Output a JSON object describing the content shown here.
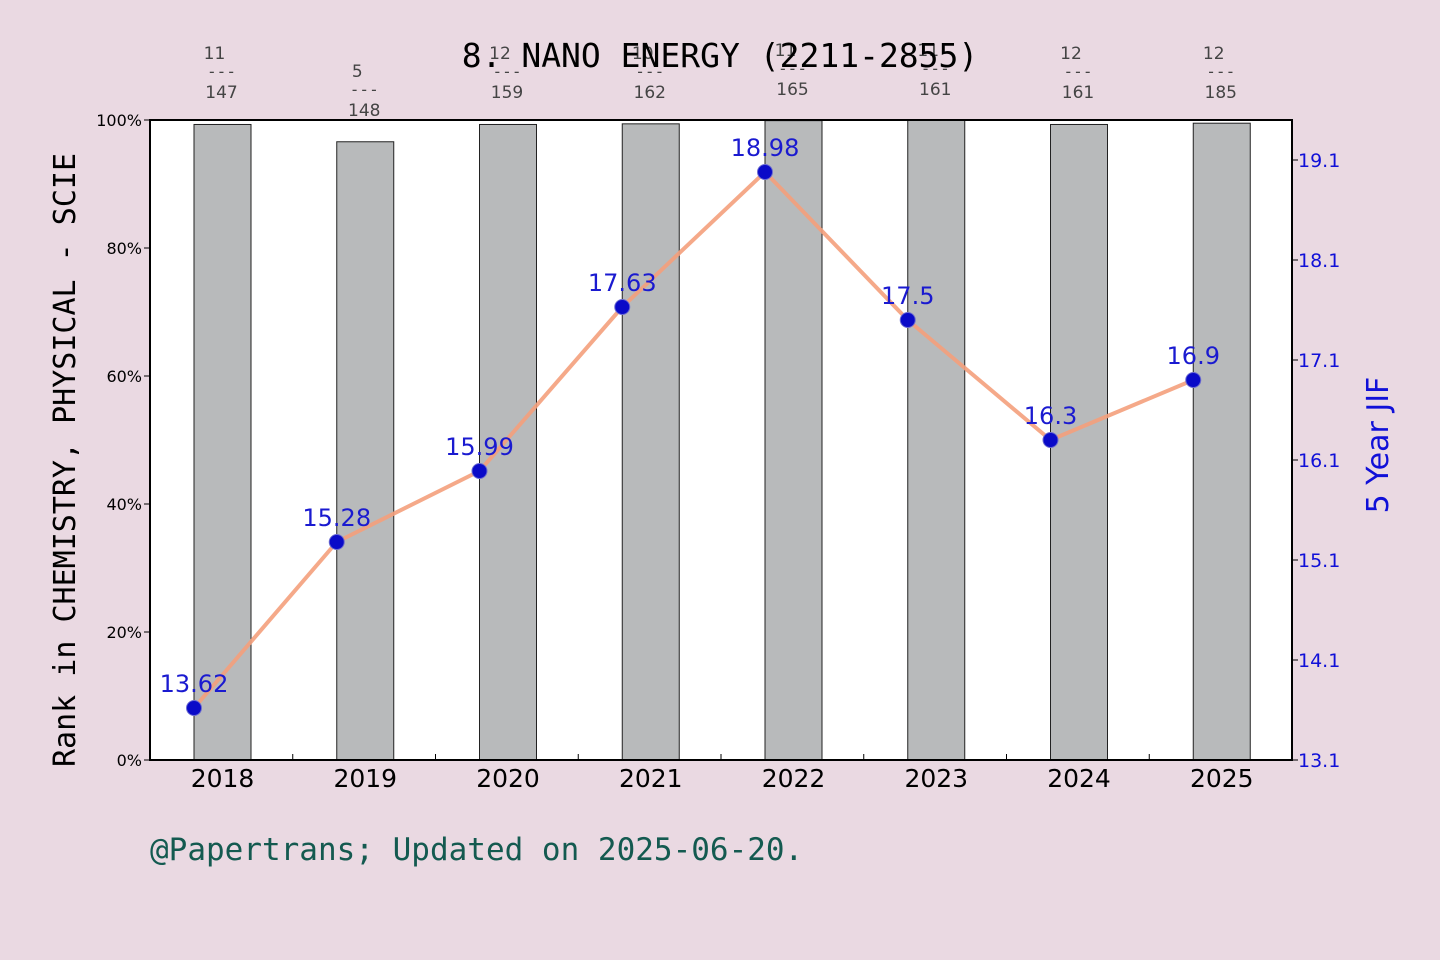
{
  "chart_data": {
    "type": "bar",
    "title": "8. NANO ENERGY (2211-2855)",
    "categories": [
      "2018",
      "2019",
      "2020",
      "2021",
      "2022",
      "2023",
      "2024",
      "2025"
    ],
    "ylabel": "Rank in CHEMISTRY, PHYSICAL - SCIE",
    "y2label": "5 Year JIF",
    "ylim": [
      0,
      100
    ],
    "y2lim": [
      13.1,
      19.5
    ],
    "yticks": [
      "0%",
      "20%",
      "40%",
      "60%",
      "80%",
      "100%"
    ],
    "y2ticks": [
      "13.1",
      "14.1",
      "15.1",
      "16.1",
      "17.1",
      "18.1",
      "19.1"
    ],
    "y2tick_values": [
      13.1,
      14.1,
      15.1,
      16.1,
      17.1,
      18.1,
      19.1
    ],
    "series": [
      {
        "type": "bar",
        "values": [
          99.3,
          96.6,
          99.3,
          99.4,
          99.9,
          100.0,
          99.3,
          99.5
        ],
        "rank_numerators": [
          "11",
          "5",
          "12",
          "10",
          "11",
          "11",
          "12",
          "12"
        ],
        "rank_denominators": [
          "147",
          "148",
          "159",
          "162",
          "165",
          "161",
          "161",
          "185"
        ],
        "color": "#b8babb"
      },
      {
        "type": "line",
        "values": [
          13.62,
          15.28,
          15.99,
          17.63,
          18.98,
          17.5,
          16.3,
          16.9
        ],
        "labels": [
          "13.62",
          "15.28",
          "15.99",
          "17.63",
          "18.98",
          "17.5",
          "16.3",
          "16.9"
        ],
        "color": "#f4a07c",
        "marker_color": "#0a0ac8"
      }
    ],
    "legend": "none",
    "grid": false
  },
  "footer": "@Papertrans; Updated on 2025-06-20."
}
